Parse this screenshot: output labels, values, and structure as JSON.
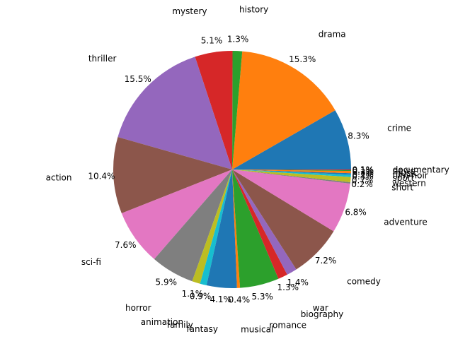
{
  "chart_data": {
    "type": "pie",
    "title": "",
    "start_angle_deg": 0,
    "direction": "counterclockwise",
    "slices": [
      {
        "label": "crime",
        "value": 8.3,
        "pct_label": "8.3%",
        "color": "#1f77b4"
      },
      {
        "label": "drama",
        "value": 15.3,
        "pct_label": "15.3%",
        "color": "#ff7f0e"
      },
      {
        "label": "history",
        "value": 1.3,
        "pct_label": "1.3%",
        "color": "#2ca02c"
      },
      {
        "label": "mystery",
        "value": 5.1,
        "pct_label": "5.1%",
        "color": "#d62728"
      },
      {
        "label": "thriller",
        "value": 15.5,
        "pct_label": "15.5%",
        "color": "#9467bd"
      },
      {
        "label": "action",
        "value": 10.4,
        "pct_label": "10.4%",
        "color": "#8c564b"
      },
      {
        "label": "sci-fi",
        "value": 7.6,
        "pct_label": "7.6%",
        "color": "#e377c2"
      },
      {
        "label": "horror",
        "value": 5.9,
        "pct_label": "5.9%",
        "color": "#7f7f7f"
      },
      {
        "label": "animation",
        "value": 1.1,
        "pct_label": "1.1%",
        "color": "#bcbd22"
      },
      {
        "label": "family",
        "value": 0.9,
        "pct_label": "0.9%",
        "color": "#17becf"
      },
      {
        "label": "fantasy",
        "value": 4.1,
        "pct_label": "4.1%",
        "color": "#1f77b4"
      },
      {
        "label": "musical",
        "value": 0.4,
        "pct_label": "0.4%",
        "color": "#ff7f0e"
      },
      {
        "label": "romance",
        "value": 5.3,
        "pct_label": "5.3%",
        "color": "#2ca02c"
      },
      {
        "label": "biography",
        "value": 1.3,
        "pct_label": "1.3%",
        "color": "#d62728"
      },
      {
        "label": "war",
        "value": 1.4,
        "pct_label": "1.4%",
        "color": "#9467bd"
      },
      {
        "label": "comedy",
        "value": 7.2,
        "pct_label": "7.2%",
        "color": "#8c564b"
      },
      {
        "label": "adventure",
        "value": 6.8,
        "pct_label": "6.8%",
        "color": "#e377c2"
      },
      {
        "label": "short",
        "value": 0.2,
        "pct_label": "0.2%",
        "color": "#7f7f7f"
      },
      {
        "label": "western",
        "value": 0.7,
        "pct_label": "0.7%",
        "color": "#bcbd22"
      },
      {
        "label": "sport",
        "value": 0.3,
        "pct_label": "0.3%",
        "color": "#17becf"
      },
      {
        "label": "film-noir",
        "value": 0.2,
        "pct_label": "0.2%",
        "color": "#1f77b4"
      },
      {
        "label": "music",
        "value": 0.3,
        "pct_label": "0.3%",
        "color": "#ff7f0e"
      },
      {
        "label": "news",
        "value": 0.1,
        "pct_label": "0.1%",
        "color": "#2ca02c"
      },
      {
        "label": "documentary",
        "value": 0.1,
        "pct_label": "0.1%",
        "color": "#d62728"
      }
    ]
  }
}
